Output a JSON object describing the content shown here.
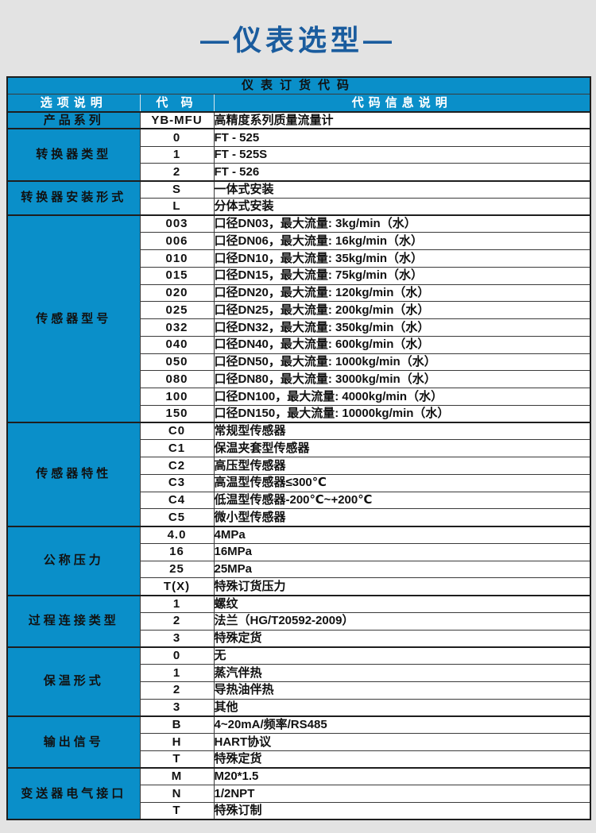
{
  "page": {
    "title": "—仪表选型—",
    "title_color": "#1a5c9e",
    "background_color": "#e3e3e3",
    "accent_color": "#0a8fc9"
  },
  "table": {
    "caption": "仪表订货代码",
    "headers": {
      "option": "选项说明",
      "code": "代 码",
      "desc": "代码信息说明"
    },
    "groups": [
      {
        "label": "产品系列",
        "rows": [
          {
            "code": "YB-MFU",
            "desc": "高精度系列质量流量计"
          }
        ]
      },
      {
        "label": "转换器类型",
        "rows": [
          {
            "code": "0",
            "desc": "FT - 525"
          },
          {
            "code": "1",
            "desc": "FT - 525S"
          },
          {
            "code": "2",
            "desc": "FT - 526"
          }
        ]
      },
      {
        "label": "转换器安装形式",
        "rows": [
          {
            "code": "S",
            "desc": "一体式安装"
          },
          {
            "code": "L",
            "desc": "分体式安装"
          }
        ]
      },
      {
        "label": "传感器型号",
        "rows": [
          {
            "code": "003",
            "desc": "口径DN03，最大流量: 3kg/min（水）"
          },
          {
            "code": "006",
            "desc": "口径DN06，最大流量: 16kg/min（水）"
          },
          {
            "code": "010",
            "desc": "口径DN10，最大流量: 35kg/min（水）"
          },
          {
            "code": "015",
            "desc": "口径DN15，最大流量: 75kg/min（水）"
          },
          {
            "code": "020",
            "desc": "口径DN20，最大流量: 120kg/min（水）"
          },
          {
            "code": "025",
            "desc": "口径DN25，最大流量: 200kg/min（水）"
          },
          {
            "code": "032",
            "desc": "口径DN32，最大流量: 350kg/min（水）"
          },
          {
            "code": "040",
            "desc": "口径DN40，最大流量: 600kg/min（水）"
          },
          {
            "code": "050",
            "desc": "口径DN50，最大流量: 1000kg/min（水）"
          },
          {
            "code": "080",
            "desc": "口径DN80，最大流量: 3000kg/min（水）"
          },
          {
            "code": "100",
            "desc": "口径DN100，最大流量: 4000kg/min（水）"
          },
          {
            "code": "150",
            "desc": "口径DN150，最大流量: 10000kg/min（水）"
          }
        ]
      },
      {
        "label": "传感器特性",
        "rows": [
          {
            "code": "C0",
            "desc": "常规型传感器"
          },
          {
            "code": "C1",
            "desc": "保温夹套型传感器"
          },
          {
            "code": "C2",
            "desc": "高压型传感器"
          },
          {
            "code": "C3",
            "desc": "高温型传感器≤300℃"
          },
          {
            "code": "C4",
            "desc": "低温型传感器-200℃~+200℃"
          },
          {
            "code": "C5",
            "desc": "微小型传感器"
          }
        ]
      },
      {
        "label": "公称压力",
        "rows": [
          {
            "code": "4.0",
            "desc": "4MPa"
          },
          {
            "code": "16",
            "desc": "16MPa"
          },
          {
            "code": "25",
            "desc": "25MPa"
          },
          {
            "code": "T(X)",
            "desc": "特殊订货压力"
          }
        ]
      },
      {
        "label": "过程连接类型",
        "rows": [
          {
            "code": "1",
            "desc": "螺纹"
          },
          {
            "code": "2",
            "desc": "法兰（HG/T20592-2009）"
          },
          {
            "code": "3",
            "desc": "特殊定货"
          }
        ]
      },
      {
        "label": "保温形式",
        "rows": [
          {
            "code": "0",
            "desc": "无"
          },
          {
            "code": "1",
            "desc": "蒸汽伴热"
          },
          {
            "code": "2",
            "desc": "导热油伴热"
          },
          {
            "code": "3",
            "desc": "其他"
          }
        ]
      },
      {
        "label": "输出信号",
        "rows": [
          {
            "code": "B",
            "desc": "4~20mA/频率/RS485"
          },
          {
            "code": "H",
            "desc": "HART协议"
          },
          {
            "code": "T",
            "desc": "特殊定货"
          }
        ]
      },
      {
        "label": "变送器电气接口",
        "rows": [
          {
            "code": "M",
            "desc": "M20*1.5"
          },
          {
            "code": "N",
            "desc": "1/2NPT"
          },
          {
            "code": "T",
            "desc": "特殊订制"
          }
        ]
      }
    ]
  }
}
